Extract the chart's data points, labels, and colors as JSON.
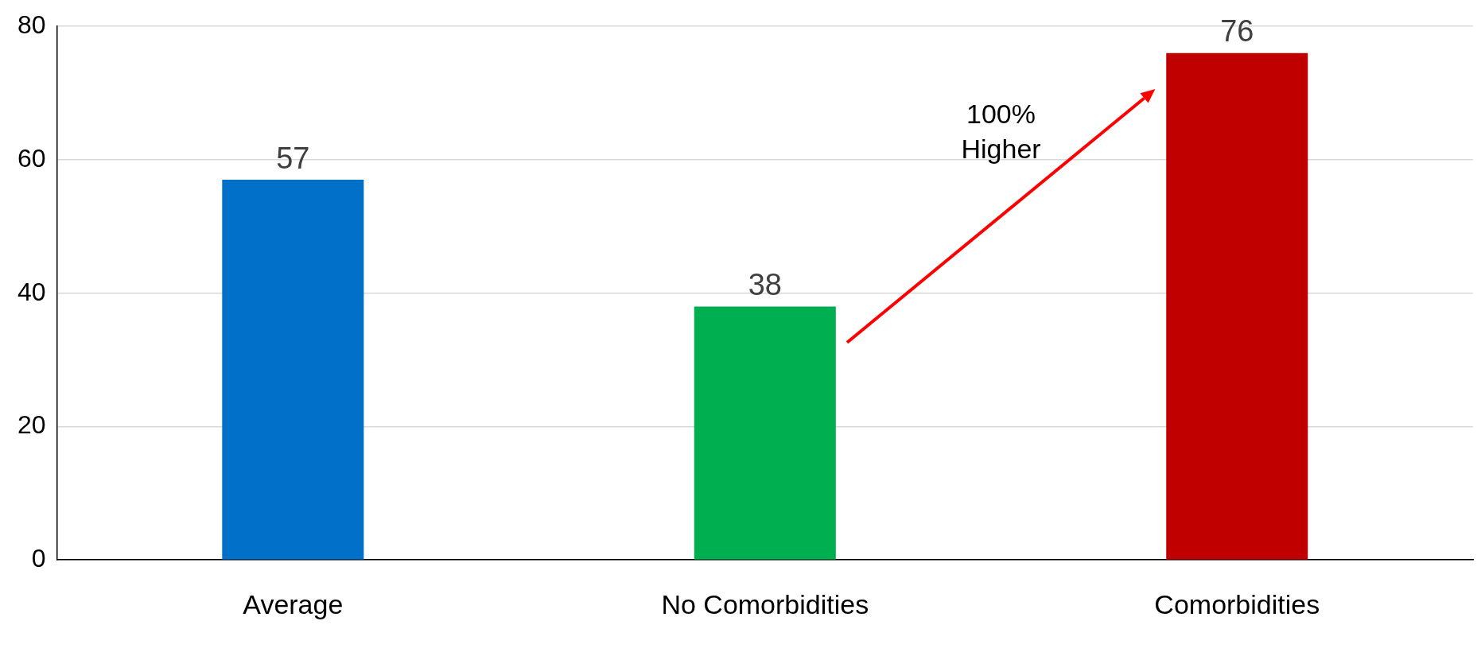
{
  "chart_data": {
    "type": "bar",
    "categories": [
      "Average",
      "No Comorbidities",
      "Comorbidities"
    ],
    "values": [
      57,
      38,
      76
    ],
    "colors": [
      "#0070c8",
      "#00b050",
      "#c00000"
    ],
    "ylim": [
      0,
      80
    ],
    "yticks": [
      0,
      20,
      40,
      60,
      80
    ],
    "grid": "y",
    "data_labels": true,
    "legend": false,
    "annotations": [
      "100% Higher"
    ]
  }
}
